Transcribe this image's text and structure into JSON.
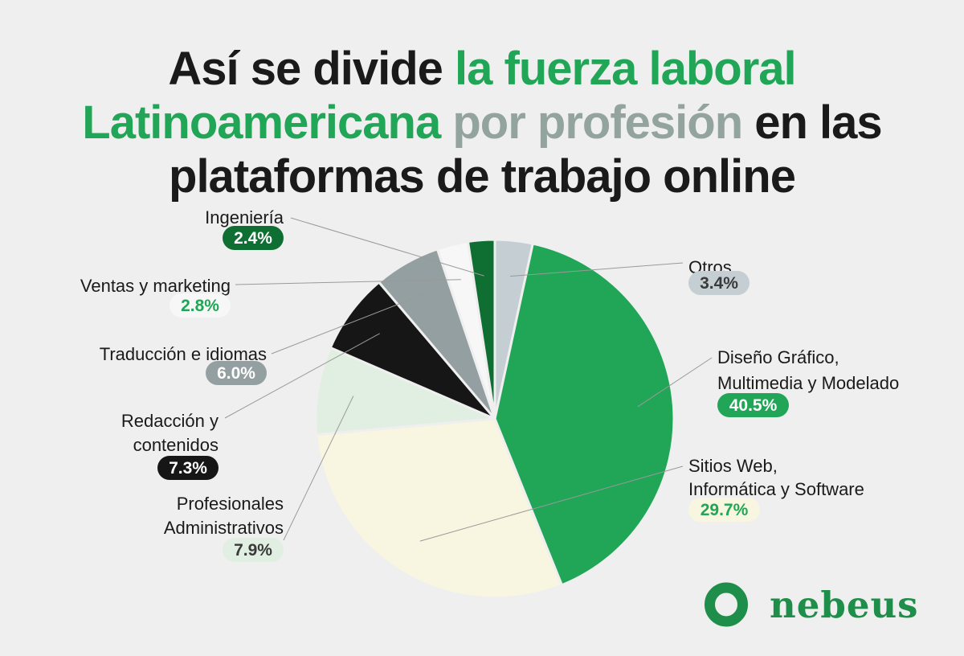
{
  "title": {
    "part1": "Así se divide ",
    "part2": "la fuerza laboral Latinoamericana",
    "part3": " por profesión",
    "part4": " en las plataformas de trabajo online"
  },
  "brand": {
    "name": "nebeus",
    "color": "#1f8e4a"
  },
  "chart_data": {
    "type": "pie",
    "slices": [
      {
        "label": "Otros",
        "value": 3.4,
        "value_label": "3.4%",
        "color": "#c5ced2"
      },
      {
        "label": "Diseño Gráfico, Multimedia y Modelado",
        "value": 40.5,
        "value_label": "40.5%",
        "color": "#21a556"
      },
      {
        "label": "Sitios Web, Informática y Software",
        "value": 29.7,
        "value_label": "29.7%",
        "color": "#f8f6e0"
      },
      {
        "label": "Profesionales Administrativos",
        "value": 7.9,
        "value_label": "7.9%",
        "color": "#e0efe1"
      },
      {
        "label": "Redacción y contenidos",
        "value": 7.3,
        "value_label": "7.3%",
        "color": "#161616"
      },
      {
        "label": "Traducción e idiomas",
        "value": 6.0,
        "value_label": "6.0%",
        "color": "#939fa1"
      },
      {
        "label": "Ventas y marketing",
        "value": 2.8,
        "value_label": "2.8%",
        "color": "#f7f7f7"
      },
      {
        "label": "Ingeniería",
        "value": 2.4,
        "value_label": "2.4%",
        "color": "#0f6f33"
      }
    ]
  }
}
